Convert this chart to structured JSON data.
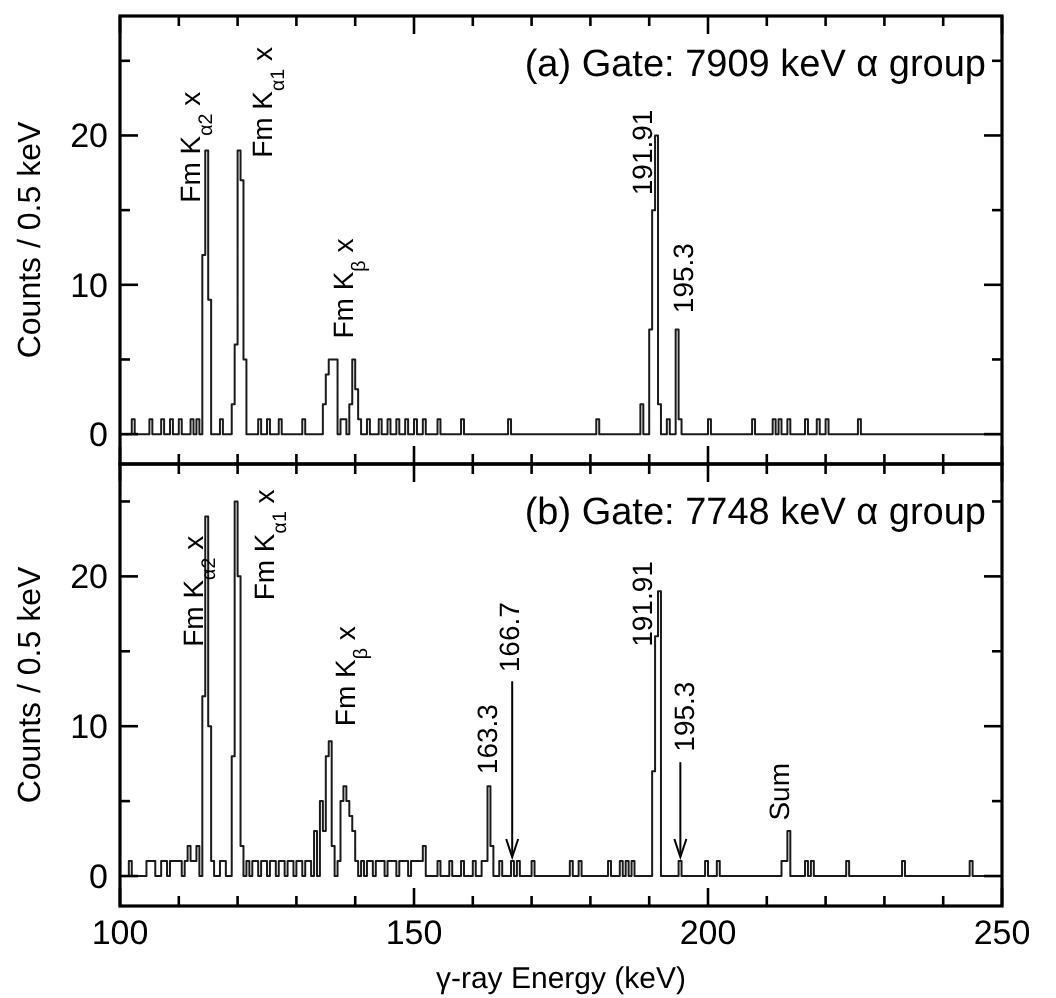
{
  "chart_data": [
    {
      "type": "step",
      "title": "(a) Gate: 7909 keV α group",
      "ylabel": "Counts / 0.5 keV",
      "xlim": [
        100,
        250
      ],
      "ylim": [
        -2,
        28
      ],
      "xticks": [
        100,
        {
          "value": 110,
          "label": null
        },
        {
          "value": 120,
          "label": null
        },
        {
          "value": 130,
          "label": null
        },
        {
          "value": 140,
          "label": null
        },
        150,
        {
          "value": 160,
          "label": null
        },
        {
          "value": 170,
          "label": null
        },
        {
          "value": 180,
          "label": null
        },
        {
          "value": 190,
          "label": null
        },
        200,
        {
          "value": 210,
          "label": null
        },
        {
          "value": 220,
          "label": null
        },
        {
          "value": 230,
          "label": null
        },
        {
          "value": 240,
          "label": null
        },
        250
      ],
      "yticks": [
        0,
        {
          "value": 5,
          "label": null
        },
        10,
        {
          "value": 15,
          "label": null
        },
        20,
        {
          "value": 25,
          "label": null
        }
      ],
      "tick_labels": "y",
      "grid": false,
      "series": [
        {
          "color": "#1a1a1a",
          "x": [
            100,
            102,
            102.5,
            105,
            105.5,
            107,
            107.5,
            108.5,
            109,
            110,
            110.5,
            112,
            112.5,
            113,
            113.5,
            114,
            114.5,
            115,
            115.5,
            117,
            117.5,
            119,
            119.5,
            120,
            120.5,
            121,
            121.5,
            123.5,
            124,
            125,
            125.5,
            127,
            127.5,
            131,
            131.5,
            134.5,
            135,
            135.5,
            136,
            136.5,
            137,
            137.5,
            138,
            138.5,
            139,
            139.5,
            140,
            140.5,
            141,
            142,
            142.5,
            144,
            144.5,
            145.5,
            146,
            147,
            147.5,
            148.5,
            149,
            150,
            150.5,
            151.5,
            152,
            154,
            154.5,
            158,
            158.5,
            166,
            166.5,
            181,
            181.5,
            188.5,
            189,
            190,
            190.5,
            191,
            191.5,
            192,
            193,
            193.5,
            194.5,
            195,
            195.5,
            200,
            200.5,
            207.5,
            208,
            211,
            211.5,
            212,
            212.5,
            213.5,
            214,
            216.5,
            217,
            218.5,
            219,
            220,
            220.5,
            225.5,
            226,
            250
          ],
          "values": [
            0,
            1,
            0,
            1,
            0,
            1,
            0,
            1,
            0,
            1,
            0,
            1,
            0,
            1,
            0,
            12,
            19,
            9,
            0,
            1,
            0,
            2,
            6,
            19,
            17,
            5,
            0,
            1,
            0,
            1,
            0,
            1,
            0,
            1,
            0,
            2,
            4,
            5,
            5,
            5,
            0,
            1,
            1,
            0,
            2,
            5,
            3,
            1,
            0,
            1,
            0,
            1,
            0,
            1,
            0,
            1,
            0,
            1,
            0,
            1,
            0,
            1,
            0,
            1,
            0,
            1,
            0,
            1,
            0,
            1,
            0,
            2,
            0,
            7,
            15,
            20,
            2,
            0,
            1,
            0,
            7,
            1,
            0,
            1,
            0,
            1,
            0,
            1,
            0,
            1,
            0,
            1,
            0,
            1,
            0,
            1,
            0,
            1,
            0,
            1,
            0,
            0
          ]
        }
      ],
      "annotations": [
        "Fm K$_{α2}$ x",
        "Fm K$_{α1}$ x",
        "Fm K$_{β}$ x",
        "191.91",
        "195.3"
      ]
    },
    {
      "type": "step",
      "title": "(b) Gate: 7748 keV α group",
      "ylabel": "Counts / 0.5 keV",
      "xlabel": "γ-ray Energy (keV)",
      "xlim": [
        100,
        250
      ],
      "ylim": [
        -2,
        27.5
      ],
      "xticks": [
        100,
        {
          "value": 110,
          "label": null
        },
        {
          "value": 120,
          "label": null
        },
        {
          "value": 130,
          "label": null
        },
        {
          "value": 140,
          "label": null
        },
        150,
        {
          "value": 160,
          "label": null
        },
        {
          "value": 170,
          "label": null
        },
        {
          "value": 180,
          "label": null
        },
        {
          "value": 190,
          "label": null
        },
        200,
        {
          "value": 210,
          "label": null
        },
        {
          "value": 220,
          "label": null
        },
        {
          "value": 230,
          "label": null
        },
        {
          "value": 240,
          "label": null
        },
        250
      ],
      "yticks": [
        0,
        {
          "value": 5,
          "label": null
        },
        10,
        {
          "value": 15,
          "label": null
        },
        20,
        {
          "value": 25,
          "label": null
        }
      ],
      "grid": false,
      "series": [
        {
          "color": "#1a1a1a",
          "x": [
            100,
            101.5,
            102,
            104.5,
            105.5,
            106,
            107,
            107.5,
            108,
            108.5,
            110.5,
            111,
            111.5,
            112,
            113,
            113.5,
            114,
            114.5,
            115,
            115.5,
            116,
            117,
            118,
            119,
            119.5,
            120,
            120.5,
            121,
            121.5,
            122,
            122.5,
            123.5,
            124,
            125,
            125.5,
            126.5,
            127,
            128,
            128.5,
            129.5,
            130,
            131,
            131.5,
            132.5,
            133,
            133.5,
            134,
            134.5,
            135,
            135.5,
            136,
            136.5,
            137,
            137.5,
            138,
            138.5,
            139,
            139.5,
            140,
            140.5,
            141,
            141.5,
            142,
            143,
            143.5,
            145,
            145.5,
            147,
            147.5,
            149,
            149.5,
            151.5,
            152,
            154,
            154.5,
            156,
            156.5,
            158,
            158.5,
            160,
            160.5,
            161.5,
            162.5,
            163,
            163.5,
            164.5,
            165,
            166.5,
            167,
            167.5,
            168,
            170,
            170.5,
            176.5,
            177,
            178,
            178.5,
            183,
            183.5,
            185,
            185.5,
            186,
            186.5,
            187,
            187.5,
            190.5,
            191,
            191.5,
            192,
            195,
            195.5,
            199.5,
            200,
            201.5,
            202,
            212.5,
            213.5,
            214,
            216.5,
            217,
            217.5,
            218,
            223.5,
            224,
            233,
            233.5,
            244.5,
            245,
            250
          ],
          "values": [
            0,
            1,
            0,
            1,
            1,
            0,
            1,
            1,
            0,
            1,
            0,
            1,
            2,
            1,
            2,
            0,
            12,
            24,
            10,
            1,
            0,
            1,
            0,
            8,
            25,
            20,
            2,
            0,
            1,
            0,
            1,
            0,
            1,
            0,
            1,
            0,
            1,
            0,
            1,
            0,
            1,
            0,
            1,
            0,
            3,
            0,
            5,
            3,
            8,
            9,
            2,
            0,
            1,
            5,
            6,
            5,
            4,
            3,
            1,
            0,
            1,
            0,
            1,
            0,
            1,
            0,
            1,
            0,
            1,
            0,
            1,
            2,
            0,
            1,
            0,
            1,
            0,
            1,
            0,
            1,
            0,
            1,
            6,
            2,
            0,
            1,
            0,
            1,
            0,
            1,
            0,
            1,
            0,
            1,
            0,
            1,
            0,
            1,
            0,
            1,
            0,
            1,
            0,
            1,
            0,
            7,
            16,
            19,
            0,
            1,
            0,
            1,
            0,
            1,
            0,
            1,
            3,
            0,
            1,
            0,
            1,
            0,
            1,
            0,
            1,
            0,
            1,
            0,
            0
          ]
        }
      ],
      "annotations": [
        "Fm K$_{α2}$ x",
        "Fm K$_{α1}$ x",
        "Fm K$_{β}$ x",
        "163.3",
        {
          "text": "166.7",
          "x": 166.7,
          "y": 1
        },
        "191.91",
        {
          "text": "195.3",
          "x": 195.3,
          "y": 1
        },
        "Sum"
      ]
    }
  ]
}
